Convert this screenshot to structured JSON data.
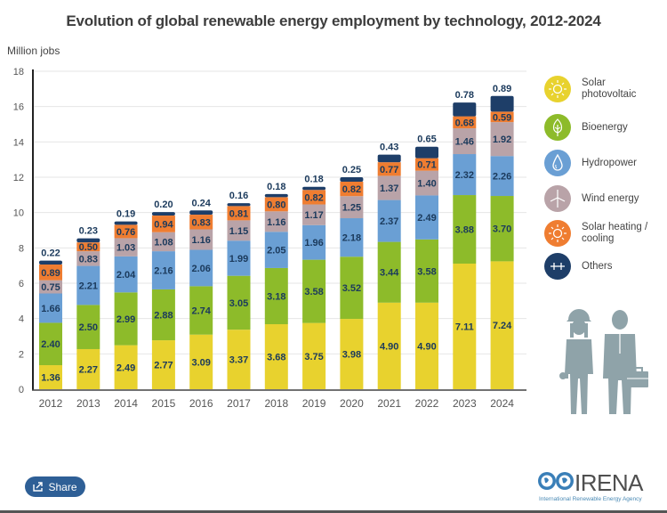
{
  "header": {
    "title": "Evolution of global renewable energy employment by technology, 2012-2024"
  },
  "chart_data": {
    "type": "bar",
    "stacked": true,
    "title": "Evolution of global renewable energy employment by technology, 2012-2024",
    "xlabel": "",
    "ylabel": "Million jobs",
    "ylim": [
      0,
      18
    ],
    "yticks": [
      0,
      2,
      4,
      6,
      8,
      10,
      12,
      14,
      16,
      18
    ],
    "grid": true,
    "legend_position": "right",
    "categories": [
      "2012",
      "2013",
      "2014",
      "2015",
      "2016",
      "2017",
      "2018",
      "2019",
      "2020",
      "2021",
      "2022",
      "2023",
      "2024"
    ],
    "series": [
      {
        "name": "Solar photovoltaic",
        "color": "#e8d22e",
        "values": [
          1.36,
          2.27,
          2.49,
          2.77,
          3.09,
          3.37,
          3.68,
          3.75,
          3.98,
          4.9,
          4.9,
          7.11,
          7.24
        ]
      },
      {
        "name": "Bioenergy",
        "color": "#8dbb2a",
        "values": [
          2.4,
          2.5,
          2.99,
          2.88,
          2.74,
          3.05,
          3.18,
          3.58,
          3.52,
          3.44,
          3.58,
          3.88,
          3.7
        ]
      },
      {
        "name": "Hydropower",
        "color": "#6a9fd4",
        "values": [
          1.66,
          2.21,
          2.04,
          2.16,
          2.06,
          1.99,
          2.05,
          1.96,
          2.18,
          2.37,
          2.49,
          2.32,
          2.26
        ]
      },
      {
        "name": "Wind energy",
        "color": "#b9a3a8",
        "values": [
          0.75,
          0.83,
          1.03,
          1.08,
          1.16,
          1.15,
          1.16,
          1.17,
          1.25,
          1.37,
          1.4,
          1.46,
          1.92
        ]
      },
      {
        "name": "Solar heating / cooling",
        "color": "#ef7d31",
        "values": [
          0.89,
          0.5,
          0.76,
          0.94,
          0.83,
          0.81,
          0.8,
          0.82,
          0.82,
          0.77,
          0.71,
          0.68,
          0.59
        ]
      },
      {
        "name": "Others",
        "color": "#1e3e68",
        "values": [
          0.22,
          0.23,
          0.19,
          0.2,
          0.24,
          0.16,
          0.18,
          0.18,
          0.25,
          0.43,
          0.65,
          0.78,
          0.89
        ]
      }
    ],
    "label_color": "#1b3a5c"
  },
  "legend": [
    {
      "label": "Solar photovoltaic",
      "icon": "sun-icon",
      "color": "#e8d22e"
    },
    {
      "label": "Bioenergy",
      "icon": "leaf-icon",
      "color": "#8dbb2a"
    },
    {
      "label": "Hydropower",
      "icon": "water-drop-icon",
      "color": "#6a9fd4"
    },
    {
      "label": "Wind energy",
      "icon": "wind-turbine-icon",
      "color": "#b9a3a8"
    },
    {
      "label": "Solar heating / cooling",
      "icon": "sun-icon",
      "color": "#ef7d31"
    },
    {
      "label": "Others",
      "icon": "plus-icon",
      "color": "#1e3e68"
    }
  ],
  "footer": {
    "share_label": "Share",
    "logo_name": "IRENA",
    "logo_subtitle": "International Renewable Energy Agency"
  }
}
